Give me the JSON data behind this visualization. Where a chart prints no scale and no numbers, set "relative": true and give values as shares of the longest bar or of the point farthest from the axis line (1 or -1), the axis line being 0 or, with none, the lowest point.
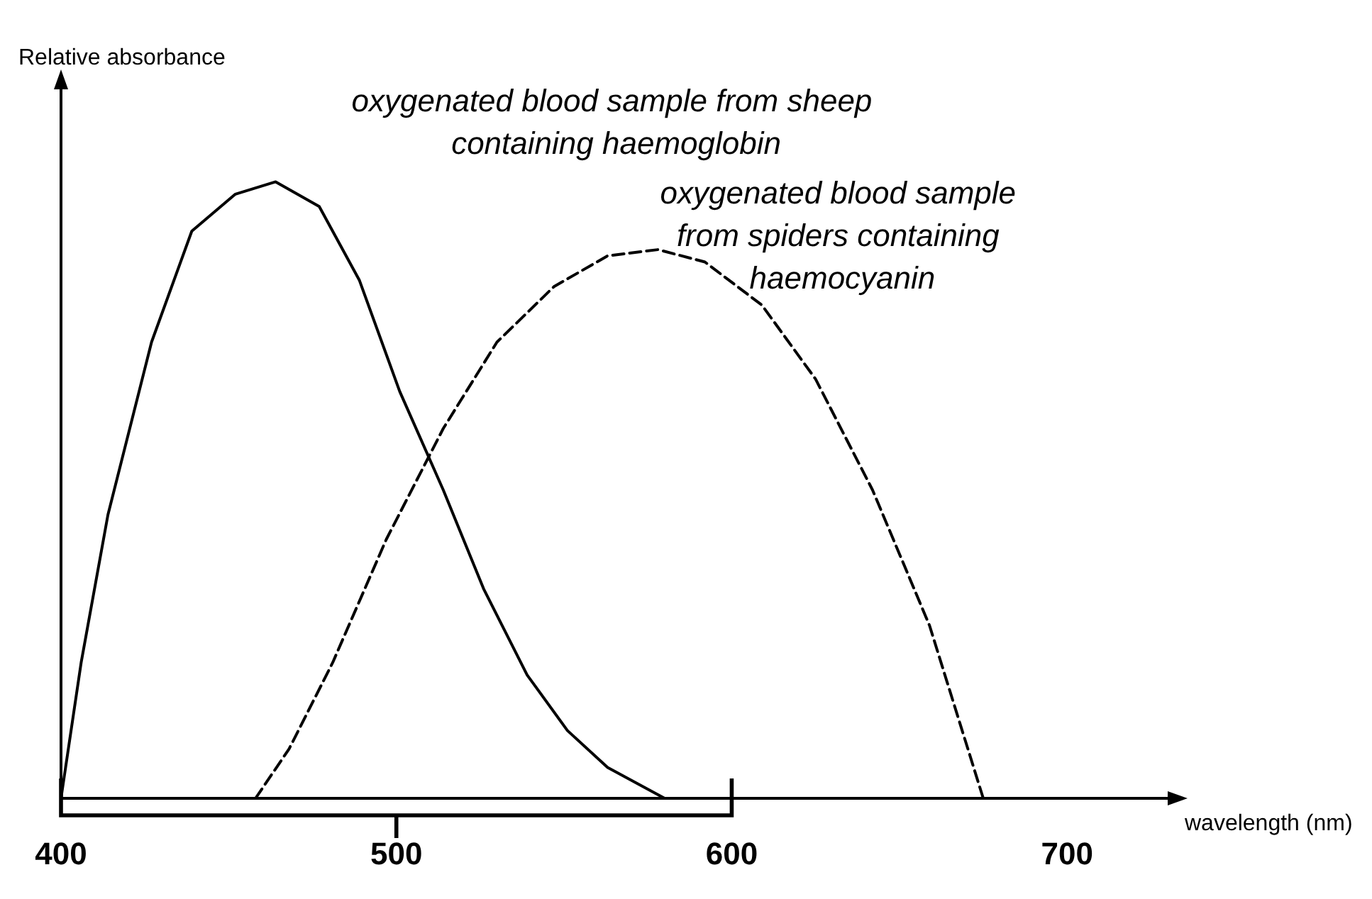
{
  "chart_data": {
    "type": "line",
    "relative": true,
    "xlabel": "wavelength (nm)",
    "ylabel": "Relative absorbance",
    "xlim": [
      400,
      730
    ],
    "xticks": [
      400,
      500,
      600,
      700
    ],
    "grid": false,
    "legend": false,
    "marker": "none",
    "series": [
      {
        "name": "oxygenated blood sample from sheep containing haemoglobin",
        "color": "#000000",
        "line_style": "solid",
        "x": [
          400,
          406,
          414,
          427,
          439,
          452,
          464,
          477,
          489,
          501,
          514,
          526,
          539,
          551,
          563,
          580
        ],
        "values": [
          0,
          0.22,
          0.46,
          0.74,
          0.92,
          0.98,
          1,
          0.96,
          0.84,
          0.66,
          0.5,
          0.34,
          0.2,
          0.11,
          0.05,
          0
        ]
      },
      {
        "name": "oxygenated blood sample from spiders containing haemocyanin",
        "color": "#000000",
        "line_style": "dashed",
        "x": [
          458,
          468,
          481,
          497,
          514,
          530,
          547,
          563,
          578,
          592,
          609,
          625,
          642,
          659,
          675
        ],
        "values": [
          0,
          0.08,
          0.22,
          0.42,
          0.6,
          0.74,
          0.83,
          0.88,
          0.89,
          0.87,
          0.8,
          0.68,
          0.5,
          0.28,
          0
        ]
      }
    ]
  }
}
